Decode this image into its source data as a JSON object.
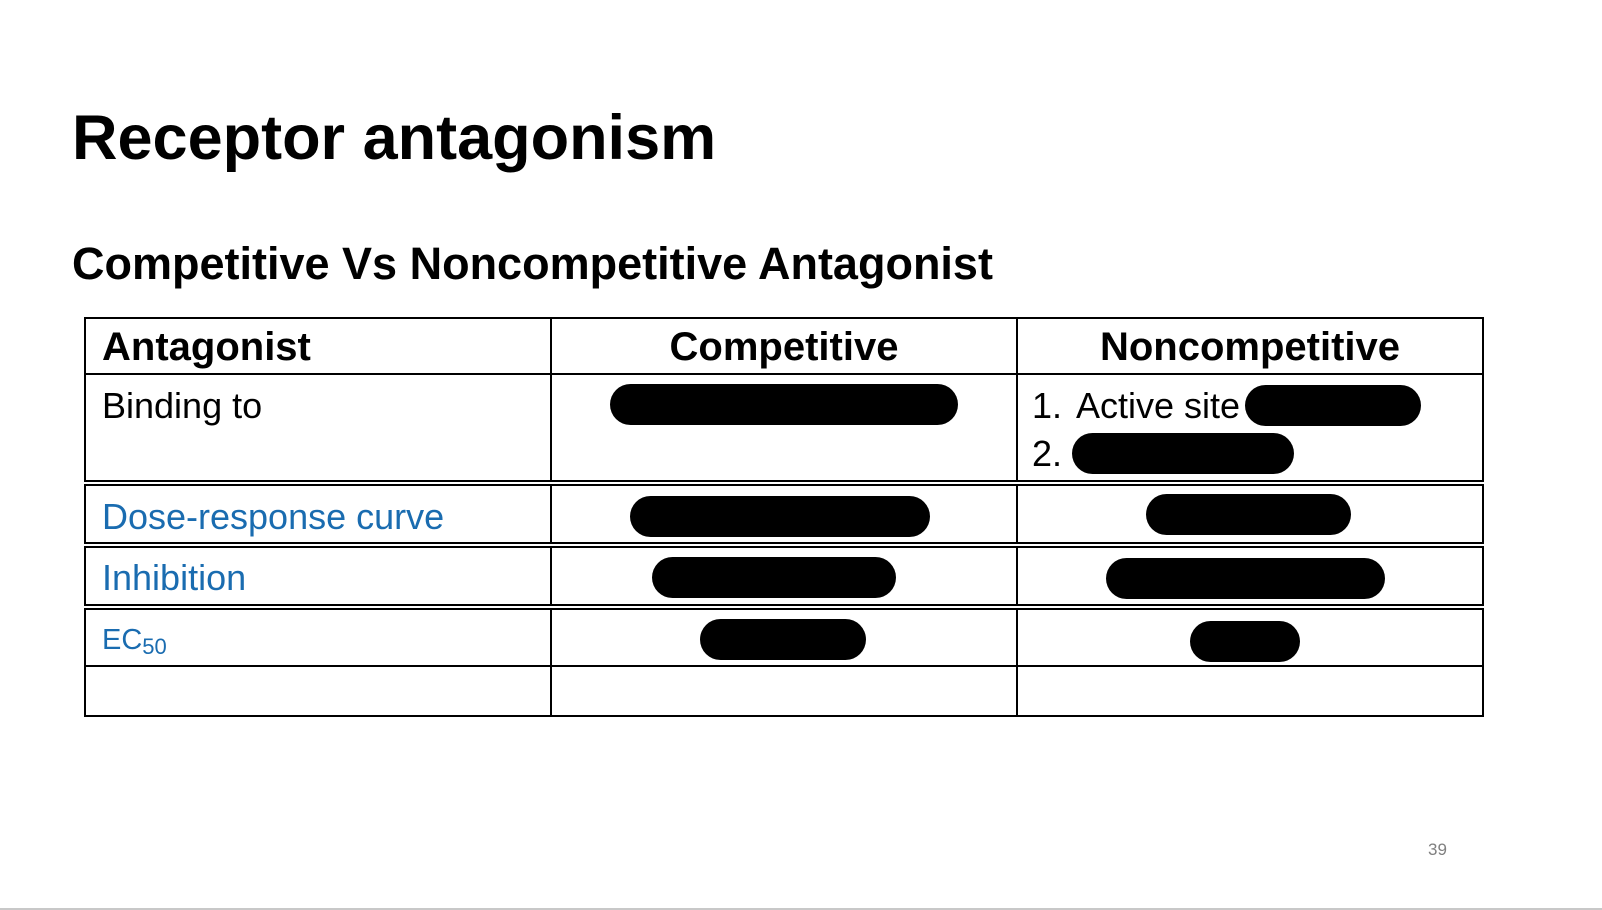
{
  "slide": {
    "title": "Receptor antagonism",
    "subtitle": "Competitive Vs Noncompetitive Antagonist",
    "page_number": "39"
  },
  "table": {
    "headers": [
      "Antagonist",
      "Competitive",
      "Noncompetitive"
    ],
    "rows": [
      {
        "label": "Binding to",
        "noncompetitive_items": [
          {
            "number": "1.",
            "text": "Active site"
          },
          {
            "number": "2.",
            "text": ""
          }
        ]
      },
      {
        "label": "Dose-response curve"
      },
      {
        "label": "Inhibition"
      },
      {
        "label_main": "EC",
        "label_sub": "50"
      },
      {
        "label": ""
      }
    ]
  },
  "colors": {
    "text": "#000000",
    "link_blue": "#1a6cb0",
    "redaction": "#000000",
    "page_number": "#7f7f7f"
  }
}
